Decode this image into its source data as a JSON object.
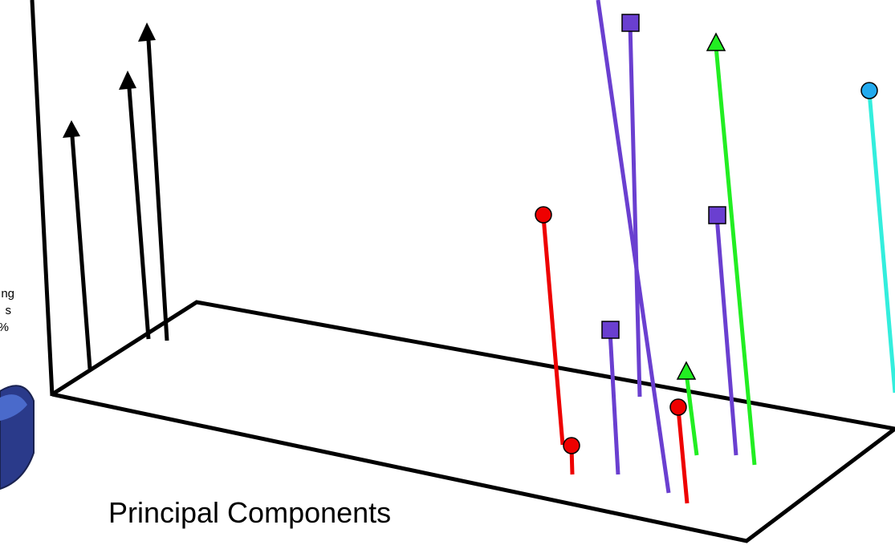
{
  "side_text": [
    "ng",
    "s",
    "%"
  ],
  "axis_label": "Principal Components"
}
